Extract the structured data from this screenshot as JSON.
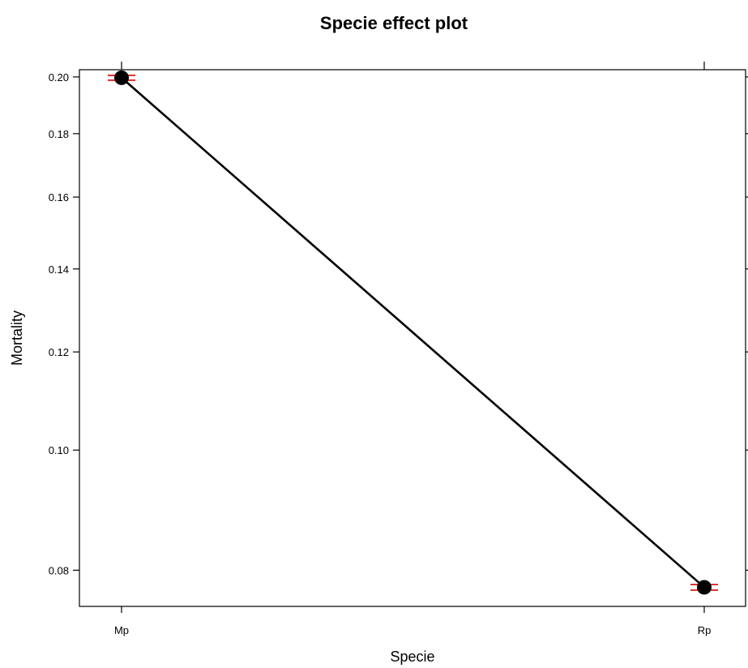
{
  "chart_data": {
    "type": "line",
    "title": "Specie effect plot",
    "xlabel": "Specie",
    "ylabel": "Mortality",
    "categories": [
      "Mp",
      "Rp"
    ],
    "series": [
      {
        "values": [
          0.1997,
          0.0775
        ],
        "lower": [
          0.1988,
          0.0771
        ],
        "upper": [
          0.2006,
          0.0779
        ]
      }
    ],
    "y_scale": "log",
    "ylim": [
      0.0748,
      0.2027
    ],
    "y_ticks": [
      0.08,
      0.1,
      0.12,
      0.14,
      0.16,
      0.18,
      0.2
    ],
    "y_tick_labels": [
      "0.08",
      "0.10",
      "0.12",
      "0.14",
      "0.16",
      "0.18",
      "0.20"
    ],
    "grid": false,
    "legend": "none",
    "colors": {
      "line": "#000000",
      "points": "#000000",
      "error_bars": "#e00000"
    }
  }
}
